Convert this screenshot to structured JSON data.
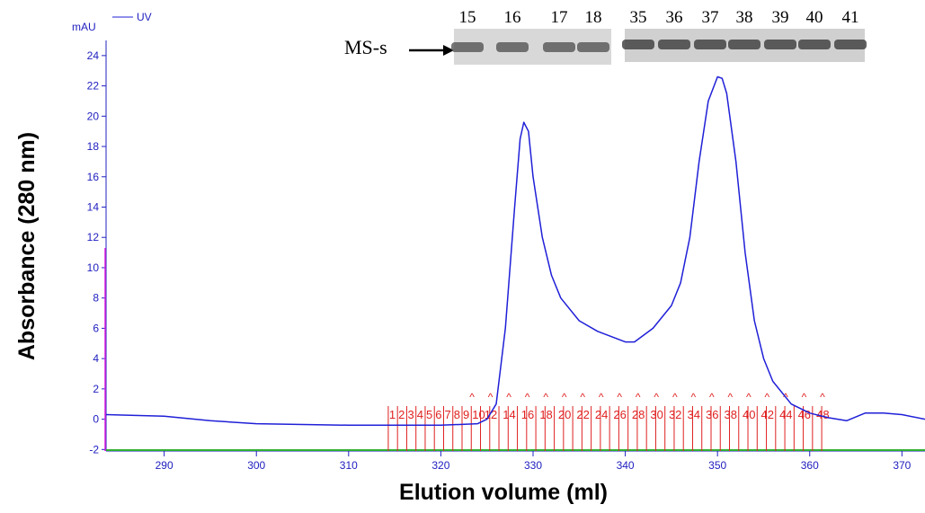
{
  "chart_data": {
    "type": "line",
    "x_label": "Elution volume (ml)",
    "y_label": "Absorbance (280 nm)",
    "y_unit": "mAU",
    "xlim": [
      283.7,
      372.5
    ],
    "xticks": [
      290,
      300,
      310,
      320,
      330,
      340,
      350,
      360,
      370
    ],
    "ylim": [
      -2.1,
      25
    ],
    "yticks": [
      -2,
      0,
      2,
      4,
      6,
      8,
      10,
      12,
      14,
      16,
      18,
      20,
      22,
      24
    ],
    "series": [
      {
        "name": "UV",
        "color": "#1f1fd8",
        "x": [
          283.7,
          290,
          295,
          300,
          310,
          320,
          324,
          325,
          326,
          327,
          328,
          328.6,
          329,
          329.5,
          330,
          331,
          332,
          333,
          335,
          337,
          340,
          341,
          343,
          345,
          346,
          347,
          348,
          349,
          350,
          350.5,
          351,
          352,
          353,
          354,
          355,
          356,
          358,
          360,
          362,
          364,
          366,
          368,
          370,
          372.5
        ],
        "values": [
          0.3,
          0.2,
          -0.1,
          -0.3,
          -0.4,
          -0.4,
          -0.3,
          0,
          1,
          6,
          14,
          18.5,
          19.6,
          19,
          16,
          12,
          9.5,
          8,
          6.5,
          5.8,
          5.1,
          5.1,
          6,
          7.5,
          9,
          12,
          17,
          21,
          22.6,
          22.5,
          21.5,
          17,
          11,
          6.5,
          4,
          2.5,
          1,
          0.4,
          0.1,
          -0.1,
          0.4,
          0.4,
          0.3,
          0
        ]
      }
    ],
    "injection": {
      "x": 283.6,
      "y": 11.3,
      "color": "#e020e0"
    },
    "fractions": {
      "color": "#e02020",
      "marker": "^",
      "x": [
        314.3,
        315.3,
        316.3,
        317.3,
        318.3,
        319.3,
        320.3,
        321.3,
        322.3,
        323.3,
        324.3,
        325.3,
        326.3,
        327.3,
        328.3,
        329.3,
        330.3,
        331.3,
        332.3,
        333.3,
        334.3,
        335.3,
        336.3,
        337.3,
        338.3,
        339.3,
        340.3,
        341.3,
        342.3,
        343.3,
        344.3,
        345.3,
        346.3,
        347.3,
        348.3,
        349.3,
        350.3,
        351.3,
        352.3,
        353.3,
        354.3,
        355.3,
        356.3,
        357.3,
        358.3,
        359.3,
        360.3,
        361.3
      ],
      "labels": [
        "1",
        "2",
        "3",
        "4",
        "5",
        "6",
        "7",
        "8",
        "9",
        "10",
        null,
        "12",
        null,
        "14",
        null,
        "16",
        null,
        "18",
        null,
        "20",
        null,
        "22",
        null,
        "24",
        null,
        "26",
        null,
        "28",
        null,
        "30",
        null,
        "32",
        null,
        "34",
        null,
        "36",
        null,
        "38",
        null,
        "40",
        null,
        "42",
        null,
        "44",
        null,
        "46",
        null,
        "48"
      ]
    },
    "gel": {
      "label": "MS-s",
      "lanes_left": [
        "15",
        "16",
        "17",
        "18"
      ],
      "lanes_right": [
        "35",
        "36",
        "37",
        "38",
        "39",
        "40",
        "41"
      ]
    }
  }
}
